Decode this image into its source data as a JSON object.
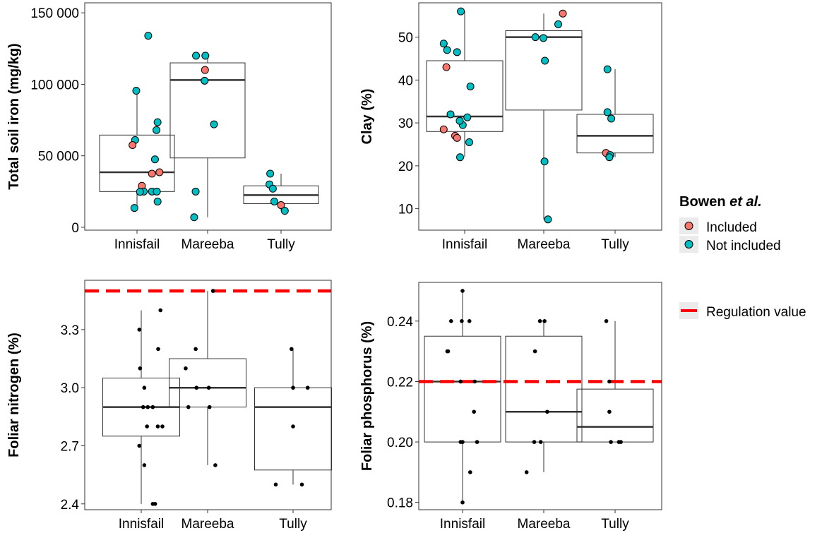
{
  "colors": {
    "included": "#F8766D",
    "not_included": "#00BFC4",
    "regulation": "#FF0000",
    "legend_key_bg": "#EBEBEB"
  },
  "legend": {
    "title_prefix": "Bowen ",
    "title_italic": "et al.",
    "included_label": "Included",
    "not_included_label": "Not included",
    "regulation_label": "Regulation value"
  },
  "chart_data": [
    {
      "type": "box",
      "ylabel": "Total soil iron (mg/kg)",
      "categories": [
        "Innisfail",
        "Mareeba",
        "Tully"
      ],
      "ylim": [
        -2000,
        157000
      ],
      "yticks": [
        0,
        50000,
        100000,
        150000
      ],
      "ytick_labels": [
        "0",
        "50 000",
        "100 000",
        "150 000"
      ],
      "boxes": [
        {
          "q1": 25000,
          "median": 38500,
          "q3": 64500,
          "whisker_low": 13500,
          "whisker_high": 96000
        },
        {
          "q1": 48500,
          "median": 103000,
          "q3": 115000,
          "whisker_low": 7000,
          "whisker_high": 120000
        },
        {
          "q1": 16500,
          "median": 22500,
          "q3": 29000,
          "whisker_low": 11500,
          "whisker_high": 37500
        }
      ],
      "points": [
        {
          "cat": 0,
          "jitter": 0.3,
          "y": 134000,
          "included": false
        },
        {
          "cat": 0,
          "jitter": -0.02,
          "y": 95500,
          "included": false
        },
        {
          "cat": 0,
          "jitter": 0.55,
          "y": 73500,
          "included": false
        },
        {
          "cat": 0,
          "jitter": 0.52,
          "y": 68000,
          "included": false
        },
        {
          "cat": 0,
          "jitter": -0.05,
          "y": 61000,
          "included": false
        },
        {
          "cat": 0,
          "jitter": -0.12,
          "y": 57500,
          "included": true
        },
        {
          "cat": 0,
          "jitter": 0.48,
          "y": 47500,
          "included": false
        },
        {
          "cat": 0,
          "jitter": 0.6,
          "y": 38500,
          "included": true
        },
        {
          "cat": 0,
          "jitter": 0.4,
          "y": 37500,
          "included": true
        },
        {
          "cat": 0,
          "jitter": 0.13,
          "y": 29000,
          "included": true
        },
        {
          "cat": 0,
          "jitter": 0.18,
          "y": 25000,
          "included": false
        },
        {
          "cat": 0,
          "jitter": 0.4,
          "y": 25000,
          "included": false
        },
        {
          "cat": 0,
          "jitter": 0.08,
          "y": 24800,
          "included": false
        },
        {
          "cat": 0,
          "jitter": 0.53,
          "y": 25000,
          "included": false
        },
        {
          "cat": 0,
          "jitter": 0.55,
          "y": 18000,
          "included": false
        },
        {
          "cat": 0,
          "jitter": -0.07,
          "y": 13500,
          "included": false
        },
        {
          "cat": 1,
          "jitter": -0.31,
          "y": 120000,
          "included": false
        },
        {
          "cat": 1,
          "jitter": -0.06,
          "y": 120000,
          "included": false
        },
        {
          "cat": 1,
          "jitter": -0.07,
          "y": 110000,
          "included": true
        },
        {
          "cat": 1,
          "jitter": -0.08,
          "y": 102500,
          "included": false
        },
        {
          "cat": 1,
          "jitter": 0.17,
          "y": 72000,
          "included": false
        },
        {
          "cat": 1,
          "jitter": -0.32,
          "y": 25000,
          "included": false
        },
        {
          "cat": 1,
          "jitter": -0.36,
          "y": 7000,
          "included": false
        },
        {
          "cat": 2,
          "jitter": -0.29,
          "y": 37500,
          "included": false
        },
        {
          "cat": 2,
          "jitter": -0.31,
          "y": 30000,
          "included": false
        },
        {
          "cat": 2,
          "jitter": -0.22,
          "y": 27000,
          "included": false
        },
        {
          "cat": 2,
          "jitter": -0.18,
          "y": 18000,
          "included": false
        },
        {
          "cat": 2,
          "jitter": 0.0,
          "y": 15500,
          "included": true
        },
        {
          "cat": 2,
          "jitter": 0.1,
          "y": 11500,
          "included": false
        }
      ]
    },
    {
      "type": "box",
      "ylabel": "Clay (%)",
      "categories": [
        "Innisfail",
        "Mareeba",
        "Tully"
      ],
      "ylim": [
        5,
        58
      ],
      "yticks": [
        10,
        20,
        30,
        40,
        50
      ],
      "ytick_labels": [
        "10",
        "20",
        "30",
        "40",
        "50"
      ],
      "boxes": [
        {
          "q1": 28,
          "median": 31.5,
          "q3": 44.5,
          "whisker_low": 22,
          "whisker_high": 56
        },
        {
          "q1": 33,
          "median": 50,
          "q3": 51.5,
          "whisker_low": 7.5,
          "whisker_high": 55.5
        },
        {
          "q1": 23,
          "median": 27,
          "q3": 32,
          "whisker_low": 22,
          "whisker_high": 42.5
        }
      ],
      "points": [
        {
          "cat": 0,
          "jitter": -0.1,
          "y": 56,
          "included": false
        },
        {
          "cat": 0,
          "jitter": -0.55,
          "y": 48.5,
          "included": false
        },
        {
          "cat": 0,
          "jitter": -0.46,
          "y": 47,
          "included": false
        },
        {
          "cat": 0,
          "jitter": -0.2,
          "y": 46.5,
          "included": false
        },
        {
          "cat": 0,
          "jitter": -0.48,
          "y": 43,
          "included": true
        },
        {
          "cat": 0,
          "jitter": 0.15,
          "y": 38.5,
          "included": false
        },
        {
          "cat": 0,
          "jitter": -0.37,
          "y": 32,
          "included": false
        },
        {
          "cat": 0,
          "jitter": 0.07,
          "y": 31.3,
          "included": false
        },
        {
          "cat": 0,
          "jitter": -0.05,
          "y": 29.5,
          "included": false
        },
        {
          "cat": 0,
          "jitter": -0.13,
          "y": 30.5,
          "included": false
        },
        {
          "cat": 0,
          "jitter": -0.55,
          "y": 28.5,
          "included": true
        },
        {
          "cat": 0,
          "jitter": -0.25,
          "y": 27,
          "included": true
        },
        {
          "cat": 0,
          "jitter": -0.2,
          "y": 26.5,
          "included": true
        },
        {
          "cat": 0,
          "jitter": 0.12,
          "y": 25.5,
          "included": false
        },
        {
          "cat": 0,
          "jitter": -0.12,
          "y": 22,
          "included": false
        },
        {
          "cat": 1,
          "jitter": 0.5,
          "y": 55.5,
          "included": true
        },
        {
          "cat": 1,
          "jitter": 0.38,
          "y": 53,
          "included": false
        },
        {
          "cat": 1,
          "jitter": -0.22,
          "y": 50,
          "included": false
        },
        {
          "cat": 1,
          "jitter": -0.01,
          "y": 49.8,
          "included": false
        },
        {
          "cat": 1,
          "jitter": 0.03,
          "y": 44.5,
          "included": false
        },
        {
          "cat": 1,
          "jitter": 0.02,
          "y": 21,
          "included": false
        },
        {
          "cat": 1,
          "jitter": 0.11,
          "y": 7.5,
          "included": false
        },
        {
          "cat": 2,
          "jitter": -0.2,
          "y": 42.5,
          "included": false
        },
        {
          "cat": 2,
          "jitter": -0.2,
          "y": 32.5,
          "included": false
        },
        {
          "cat": 2,
          "jitter": -0.1,
          "y": 31,
          "included": false
        },
        {
          "cat": 2,
          "jitter": -0.24,
          "y": 23,
          "included": true
        },
        {
          "cat": 2,
          "jitter": -0.13,
          "y": 22.5,
          "included": false
        },
        {
          "cat": 2,
          "jitter": -0.15,
          "y": 22,
          "included": false
        }
      ]
    },
    {
      "type": "box",
      "ylabel": "Foliar nitrogen (%)",
      "categories": [
        "Innisfail",
        "Mareeba",
        "Tully"
      ],
      "ylim": [
        2.37,
        3.555
      ],
      "yticks": [
        2.4,
        2.7,
        3.0,
        3.3
      ],
      "ytick_labels": [
        "2.4",
        "2.7",
        "3.0",
        "3.3"
      ],
      "regulation": 3.5,
      "boxes": [
        {
          "q1": 2.75,
          "median": 2.9,
          "q3": 3.05,
          "whisker_low": 2.4,
          "whisker_high": 3.4
        },
        {
          "q1": 2.9,
          "median": 3.0,
          "q3": 3.15,
          "whisker_low": 2.6,
          "whisker_high": 3.5
        },
        {
          "q1": 2.575,
          "median": 2.9,
          "q3": 3.0,
          "whisker_low": 2.5,
          "whisker_high": 3.2
        }
      ],
      "points": [
        {
          "cat": 0,
          "jitter": 0.5,
          "y": 3.4
        },
        {
          "cat": 0,
          "jitter": -0.05,
          "y": 3.3
        },
        {
          "cat": 0,
          "jitter": 0.44,
          "y": 3.2
        },
        {
          "cat": 0,
          "jitter": -0.03,
          "y": 3.1
        },
        {
          "cat": 0,
          "jitter": 0.08,
          "y": 3.0
        },
        {
          "cat": 0,
          "jitter": 0.05,
          "y": 2.9
        },
        {
          "cat": 0,
          "jitter": 0.17,
          "y": 2.9
        },
        {
          "cat": 0,
          "jitter": 0.3,
          "y": 2.9
        },
        {
          "cat": 0,
          "jitter": 0.15,
          "y": 2.8
        },
        {
          "cat": 0,
          "jitter": 0.43,
          "y": 2.8
        },
        {
          "cat": 0,
          "jitter": 0.55,
          "y": 2.8
        },
        {
          "cat": 0,
          "jitter": -0.05,
          "y": 2.7
        },
        {
          "cat": 0,
          "jitter": 0.08,
          "y": 2.6
        },
        {
          "cat": 0,
          "jitter": 0.3,
          "y": 2.4
        },
        {
          "cat": 0,
          "jitter": 0.36,
          "y": 2.4
        },
        {
          "cat": 1,
          "jitter": 0.14,
          "y": 3.5
        },
        {
          "cat": 1,
          "jitter": -0.31,
          "y": 3.2
        },
        {
          "cat": 1,
          "jitter": -0.57,
          "y": 3.1
        },
        {
          "cat": 1,
          "jitter": -0.29,
          "y": 3.0
        },
        {
          "cat": 1,
          "jitter": 0.03,
          "y": 3.0
        },
        {
          "cat": 1,
          "jitter": -0.5,
          "y": 2.9
        },
        {
          "cat": 1,
          "jitter": 0.05,
          "y": 2.9
        },
        {
          "cat": 1,
          "jitter": 0.2,
          "y": 2.6
        },
        {
          "cat": 2,
          "jitter": -0.04,
          "y": 3.2
        },
        {
          "cat": 2,
          "jitter": 0.0,
          "y": 3.0
        },
        {
          "cat": 2,
          "jitter": 0.38,
          "y": 3.0
        },
        {
          "cat": 2,
          "jitter": 0.0,
          "y": 2.8
        },
        {
          "cat": 2,
          "jitter": -0.45,
          "y": 2.5
        },
        {
          "cat": 2,
          "jitter": 0.23,
          "y": 2.5
        }
      ]
    },
    {
      "type": "box",
      "ylabel": "Foliar phosphorus (%)",
      "categories": [
        "Innisfail",
        "Mareeba",
        "Tully"
      ],
      "ylim": [
        0.1776,
        0.2528
      ],
      "yticks": [
        0.18,
        0.2,
        0.22,
        0.24
      ],
      "ytick_labels": [
        "0.18",
        "0.20",
        "0.22",
        "0.24"
      ],
      "regulation": 0.22,
      "boxes": [
        {
          "q1": 0.2,
          "median": 0.22,
          "q3": 0.235,
          "whisker_low": 0.18,
          "whisker_high": 0.25
        },
        {
          "q1": 0.2,
          "median": 0.21,
          "q3": 0.235,
          "whisker_low": 0.19,
          "whisker_high": 0.24
        },
        {
          "q1": 0.2,
          "median": 0.205,
          "q3": 0.2175,
          "whisker_low": 0.2,
          "whisker_high": 0.24
        }
      ],
      "points": [
        {
          "cat": 0,
          "jitter": 0.0,
          "y": 0.25
        },
        {
          "cat": 0,
          "jitter": -0.3,
          "y": 0.24
        },
        {
          "cat": 0,
          "jitter": -0.02,
          "y": 0.24
        },
        {
          "cat": 0,
          "jitter": 0.18,
          "y": 0.24
        },
        {
          "cat": 0,
          "jitter": -0.4,
          "y": 0.23
        },
        {
          "cat": 0,
          "jitter": -0.38,
          "y": 0.23
        },
        {
          "cat": 0,
          "jitter": -0.05,
          "y": 0.22
        },
        {
          "cat": 0,
          "jitter": 0.32,
          "y": 0.22
        },
        {
          "cat": 0,
          "jitter": 0.3,
          "y": 0.21
        },
        {
          "cat": 0,
          "jitter": -0.05,
          "y": 0.2
        },
        {
          "cat": 0,
          "jitter": 0.0,
          "y": 0.2
        },
        {
          "cat": 0,
          "jitter": 0.38,
          "y": 0.2
        },
        {
          "cat": 0,
          "jitter": 0.2,
          "y": 0.19
        },
        {
          "cat": 0,
          "jitter": 0.0,
          "y": 0.18
        },
        {
          "cat": 1,
          "jitter": -0.1,
          "y": 0.24
        },
        {
          "cat": 1,
          "jitter": 0.02,
          "y": 0.24
        },
        {
          "cat": 1,
          "jitter": -0.23,
          "y": 0.23
        },
        {
          "cat": 1,
          "jitter": 0.09,
          "y": 0.21
        },
        {
          "cat": 1,
          "jitter": -0.25,
          "y": 0.2
        },
        {
          "cat": 1,
          "jitter": -0.08,
          "y": 0.2
        },
        {
          "cat": 1,
          "jitter": -0.45,
          "y": 0.19
        },
        {
          "cat": 2,
          "jitter": -0.23,
          "y": 0.24
        },
        {
          "cat": 2,
          "jitter": -0.15,
          "y": 0.22
        },
        {
          "cat": 2,
          "jitter": -0.15,
          "y": 0.21
        },
        {
          "cat": 2,
          "jitter": -0.11,
          "y": 0.2
        },
        {
          "cat": 2,
          "jitter": 0.1,
          "y": 0.2
        },
        {
          "cat": 2,
          "jitter": 0.15,
          "y": 0.2
        }
      ]
    }
  ]
}
